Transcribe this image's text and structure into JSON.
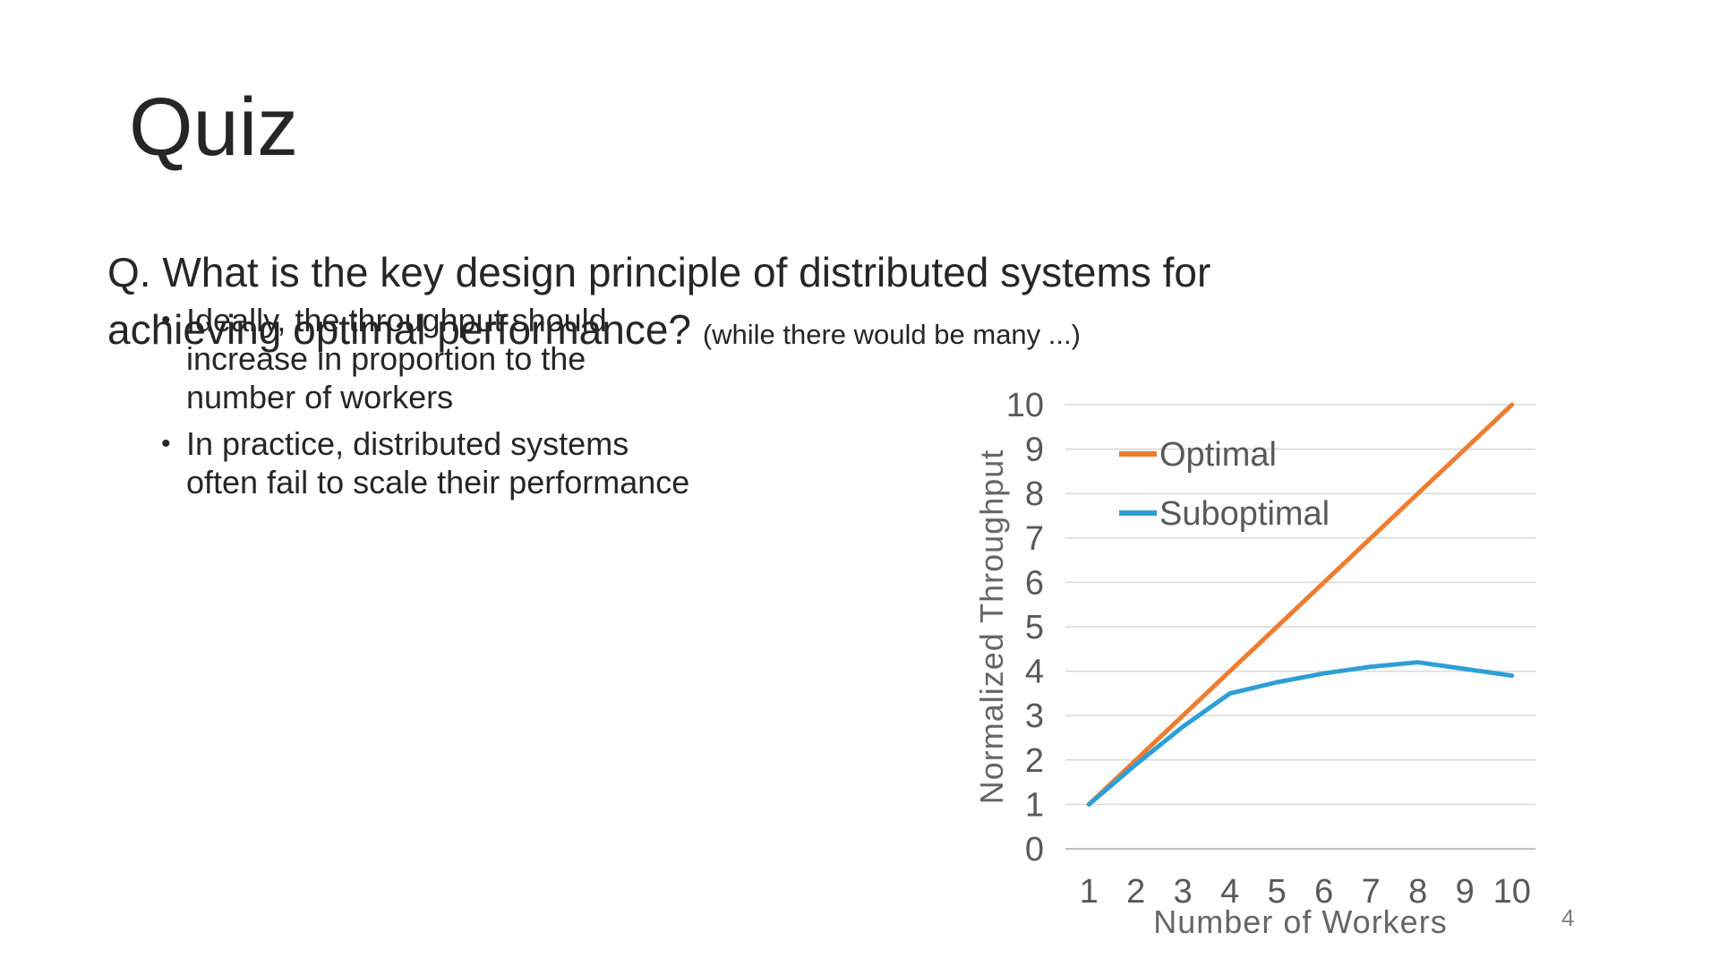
{
  "slide": {
    "title": "Quiz",
    "question_lines": [
      "Q. What is the key design principle of distributed systems for",
      "achieving optimal performance?"
    ],
    "question_note": "(while there would be many ...)",
    "bullet_char": "•",
    "bullets": [
      {
        "lines": [
          "Ideally, the throughput should",
          "increase in proportion to the",
          "number of workers"
        ]
      },
      {
        "lines": [
          "In practice, distributed systems",
          "often fail to scale their performance"
        ]
      }
    ],
    "page_number": "4"
  },
  "chart_data": {
    "type": "line",
    "title": "",
    "xlabel": "Number of Workers",
    "ylabel": "Normalized Throughput",
    "x": [
      1,
      2,
      3,
      4,
      5,
      6,
      7,
      8,
      9,
      10
    ],
    "ylim": [
      0,
      10
    ],
    "yticks": [
      0,
      1,
      2,
      3,
      4,
      5,
      6,
      7,
      8,
      9,
      10
    ],
    "grid": "horizontal",
    "legend_position": "inside-top-left",
    "series": [
      {
        "name": "Optimal",
        "color": "#ED7D31",
        "values": [
          1,
          2,
          3,
          4,
          5,
          6,
          7,
          8,
          9,
          10
        ]
      },
      {
        "name": "Suboptimal",
        "color": "#2E9FD6",
        "values": [
          1,
          1.9,
          2.75,
          3.5,
          3.75,
          3.95,
          4.1,
          4.2,
          4.05,
          3.9
        ]
      }
    ]
  },
  "colors": {
    "text_dark": "#262626",
    "chart_text": "#595959",
    "gridline": "#D9D9D9",
    "axis_line": "#BFBFBF",
    "accent_orange": "#ED7D31",
    "accent_blue": "#2E9FD6",
    "page_number_gray": "#7F7F7F"
  }
}
